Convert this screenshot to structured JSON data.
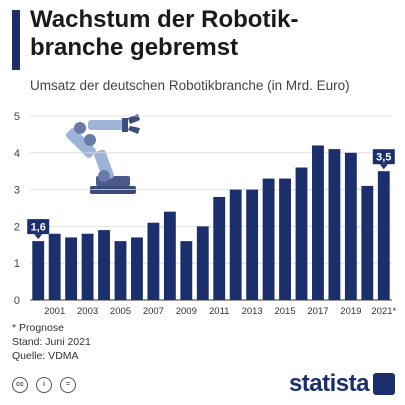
{
  "header": {
    "title": "Wachstum der Robotik- branche gebremst",
    "subtitle": "Umsatz der deutschen Robotikbranche (in Mrd. Euro)"
  },
  "chart_data": {
    "type": "bar",
    "categories": [
      "2000",
      "2001",
      "2002",
      "2003",
      "2004",
      "2005",
      "2006",
      "2007",
      "2008",
      "2009",
      "2010",
      "2011",
      "2012",
      "2013",
      "2014",
      "2015",
      "2016",
      "2017",
      "2018",
      "2019",
      "2020",
      "2021*"
    ],
    "values": [
      1.6,
      1.8,
      1.7,
      1.8,
      1.9,
      1.6,
      1.7,
      2.1,
      2.4,
      1.6,
      2.0,
      2.8,
      3.0,
      3.0,
      3.3,
      3.3,
      3.6,
      4.2,
      4.1,
      4.0,
      3.1,
      3.5
    ],
    "x_tick_labels": [
      "2001",
      "2003",
      "2005",
      "2007",
      "2009",
      "2011",
      "2013",
      "2015",
      "2017",
      "2019",
      "2021*"
    ],
    "y_ticks": [
      0,
      1,
      2,
      3,
      4,
      5
    ],
    "ylim": [
      0,
      5
    ],
    "data_labels": [
      {
        "category": "2000",
        "text": "1,6"
      },
      {
        "category": "2021*",
        "text": "3,5"
      }
    ],
    "bar_color": "#1a2f6b",
    "grid": true
  },
  "footer": {
    "note": "* Prognose",
    "date": "Stand: Juni 2021",
    "source": "Quelle: VDMA"
  },
  "branding": {
    "logo_text": "statista",
    "license_icons": [
      "cc-icon",
      "by-icon",
      "nd-icon"
    ]
  }
}
